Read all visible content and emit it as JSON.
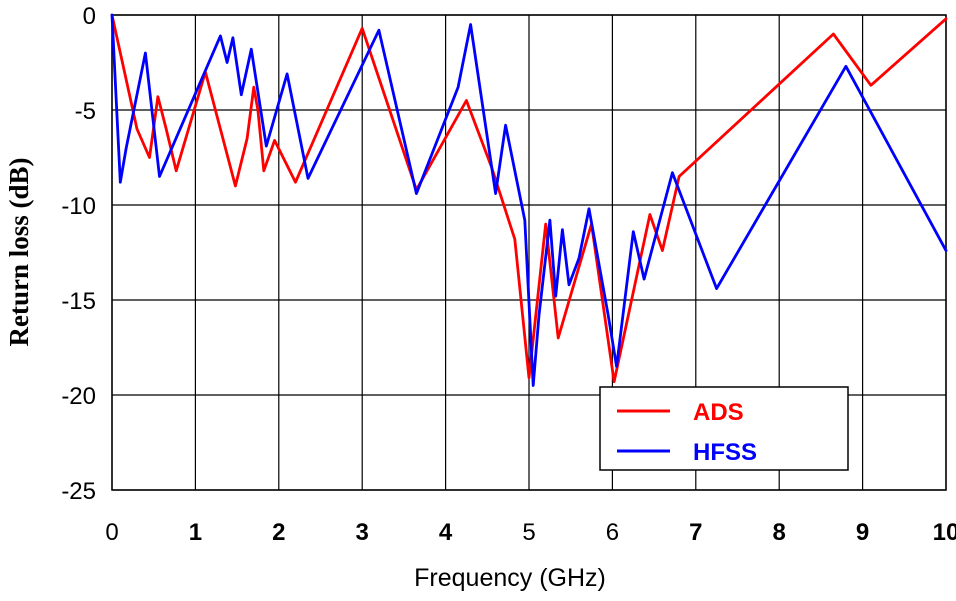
{
  "chart_data": {
    "type": "line",
    "title": "",
    "xlabel": "Frequency (GHz)",
    "ylabel": "Return loss (dB)",
    "xlim": [
      0,
      10
    ],
    "ylim": [
      -25,
      0
    ],
    "x_ticks": [
      "0",
      "1",
      "2",
      "3",
      "4",
      "5",
      "6",
      "7",
      "8",
      "9",
      "10"
    ],
    "y_ticks": [
      "0",
      "-5",
      "-10",
      "-15",
      "-20",
      "-25"
    ],
    "grid": true,
    "legend_position": "bottom-right",
    "series": [
      {
        "name": "ADS",
        "color": "#ff0000",
        "x": [
          0.0,
          0.3,
          0.45,
          0.55,
          0.65,
          0.77,
          1.12,
          1.48,
          1.62,
          1.7,
          1.75,
          1.82,
          1.95,
          2.2,
          3.0,
          3.65,
          4.25,
          4.55,
          4.83,
          5.0,
          5.2,
          5.35,
          5.75,
          6.02,
          6.45,
          6.6,
          6.8,
          8.65,
          9.1,
          10.0
        ],
        "y": [
          0.0,
          -6.0,
          -7.5,
          -4.3,
          -6.0,
          -8.2,
          -3.0,
          -9.0,
          -6.5,
          -3.8,
          -5.0,
          -8.2,
          -6.6,
          -8.8,
          -0.7,
          -9.2,
          -4.5,
          -8.0,
          -11.8,
          -19.1,
          -11.0,
          -17.0,
          -11.0,
          -19.3,
          -10.5,
          -12.4,
          -8.5,
          -1.0,
          -3.7,
          -0.2
        ]
      },
      {
        "name": "HFSS",
        "color": "#0000ff",
        "x": [
          0.0,
          0.1,
          0.17,
          0.4,
          0.57,
          1.3,
          1.38,
          1.45,
          1.55,
          1.67,
          1.85,
          2.1,
          2.35,
          3.2,
          3.65,
          4.15,
          4.3,
          4.6,
          4.72,
          4.95,
          5.05,
          5.12,
          5.25,
          5.32,
          5.4,
          5.48,
          5.6,
          5.72,
          5.95,
          6.05,
          6.25,
          6.38,
          6.72,
          7.25,
          8.8,
          10.0
        ],
        "y": [
          0.0,
          -8.8,
          -7.0,
          -2.0,
          -8.5,
          -1.1,
          -2.5,
          -1.2,
          -4.2,
          -1.8,
          -6.9,
          -3.1,
          -8.6,
          -0.8,
          -9.4,
          -3.8,
          -0.5,
          -9.4,
          -5.8,
          -10.8,
          -19.5,
          -15.8,
          -10.8,
          -14.8,
          -11.3,
          -14.2,
          -12.8,
          -10.2,
          -15.8,
          -18.5,
          -11.4,
          -13.9,
          -8.3,
          -14.4,
          -2.7,
          -12.4
        ]
      }
    ]
  }
}
